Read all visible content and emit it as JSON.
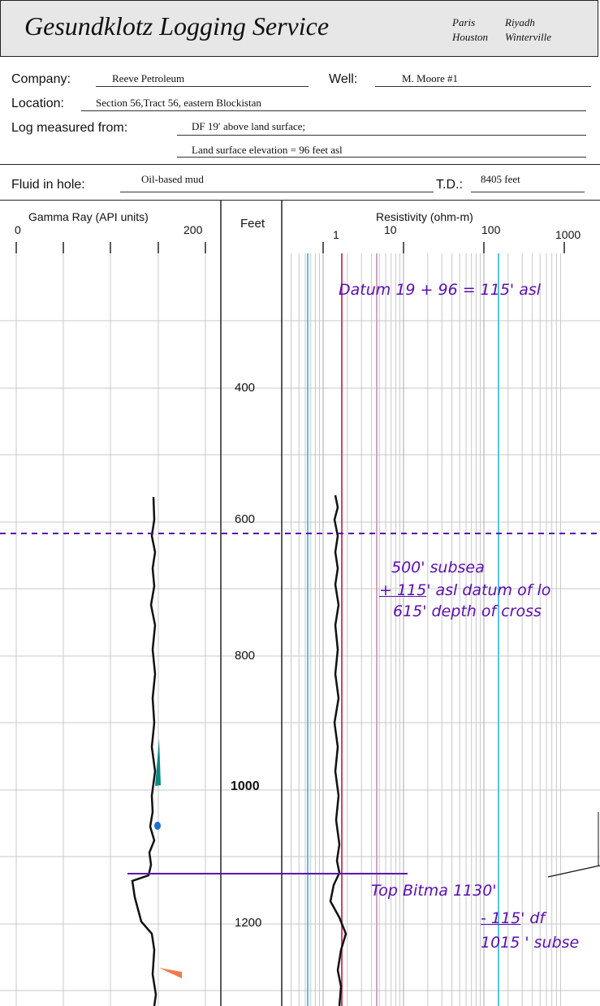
{
  "header": {
    "title": "Gesundklotz Logging Service",
    "cities": [
      "Paris",
      "Houston",
      "Riyadh",
      "Winterville"
    ]
  },
  "fields": {
    "company_label": "Company:",
    "company_value": "Reeve Petroleum",
    "well_label": "Well:",
    "well_value": "M. Moore #1",
    "location_label": "Location:",
    "location_value": "Section 56,Tract 56, eastern Blockistan",
    "measured_label": "Log measured from:",
    "measured_value": "DF 19′ above land surface;",
    "elevation_value": "Land surface elevation = 96 feet asl",
    "fluid_label": "Fluid in hole:",
    "fluid_value": "Oil-based mud",
    "td_label": "T.D.:",
    "td_value": "8405 feet"
  },
  "tracks": {
    "gamma_title": "Gamma Ray (API units)",
    "gamma_min": "0",
    "gamma_max": "200",
    "depth_title": "Feet",
    "resistivity_title": "Resistivity (ohm-m)",
    "resistivity_ticks": [
      "1",
      "10",
      "100",
      "1000"
    ]
  },
  "depths": [
    "400",
    "600",
    "800",
    "1000",
    "1200"
  ],
  "annotations": {
    "datum": "Datum 19 + 96 = 115' asl",
    "subsea_line1": "500' subsea",
    "subsea_line2_prefix": "+ 115",
    "subsea_line2_suffix": "' asl datum of lo",
    "subsea_line3": "615' depth of cross",
    "top_bitma": "Top Bitma 1130'",
    "df_prefix": "- 115",
    "df_suffix": "' df",
    "subsea_result": "1015 ' subse"
  },
  "colors": {
    "annotation": "#5a0fb0",
    "grid": "#c8c8c8",
    "blue_line": "#57c1ea",
    "red_line": "#d7406a",
    "pink_line": "#d2a3c3",
    "teal_marker": "#0b8a84",
    "blue_marker": "#1a6fd6",
    "orange_marker": "#f07a4a"
  }
}
